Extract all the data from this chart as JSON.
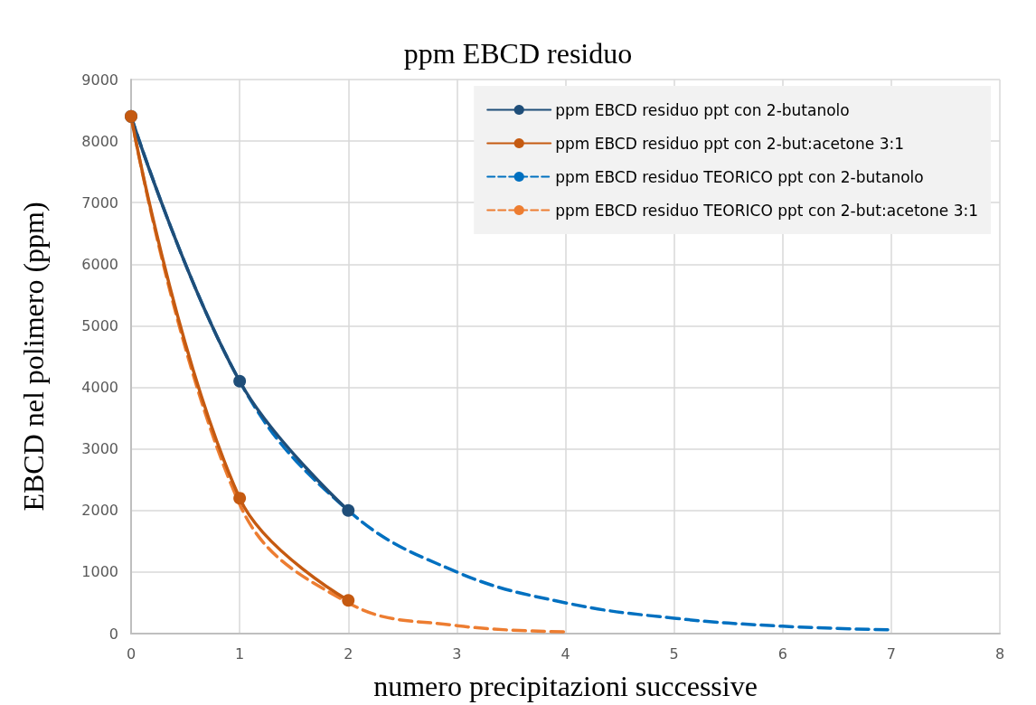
{
  "chart_data": {
    "type": "line",
    "title": "ppm EBCD residuo",
    "xlabel": "numero precipitazioni successive",
    "ylabel": "EBCD nel polimero (ppm)",
    "series": [
      {
        "name": "ppm EBCD residuo ppt con 2-butanolo",
        "color": "#1f4e79",
        "x": [
          0,
          1,
          2
        ],
        "values": [
          8400,
          4100,
          2000
        ],
        "marker": "circle",
        "line_style": "solid"
      },
      {
        "name": "ppm EBCD residuo ppt con 2-but:acetone 3:1",
        "color": "#c55a11",
        "x": [
          0,
          1,
          2
        ],
        "values": [
          8400,
          2200,
          540
        ],
        "marker": "circle",
        "line_style": "solid"
      },
      {
        "name": "ppm EBCD residuo TEORICO ppt con 2-butanolo",
        "color": "#0070c0",
        "x": [
          0,
          1,
          2,
          3,
          4,
          5,
          6,
          7
        ],
        "values": [
          8400,
          4100,
          2000,
          1000,
          500,
          250,
          120,
          60
        ],
        "marker": "none",
        "line_style": "dashed"
      },
      {
        "name": "ppm EBCD residuo TEORICO ppt con 2-but:acetone 3:1",
        "color": "#ed7d31",
        "x": [
          0,
          1,
          2,
          3,
          4
        ],
        "values": [
          8400,
          2100,
          500,
          130,
          30
        ],
        "marker": "none",
        "line_style": "dashed"
      }
    ],
    "xlim": [
      0,
      8
    ],
    "xticks": [
      0,
      1,
      2,
      3,
      4,
      5,
      6,
      7,
      8
    ],
    "ylim": [
      0,
      9000
    ],
    "yticks": [
      0,
      1000,
      2000,
      3000,
      4000,
      5000,
      6000,
      7000,
      8000,
      9000
    ],
    "grid": true,
    "legend": "top right"
  }
}
